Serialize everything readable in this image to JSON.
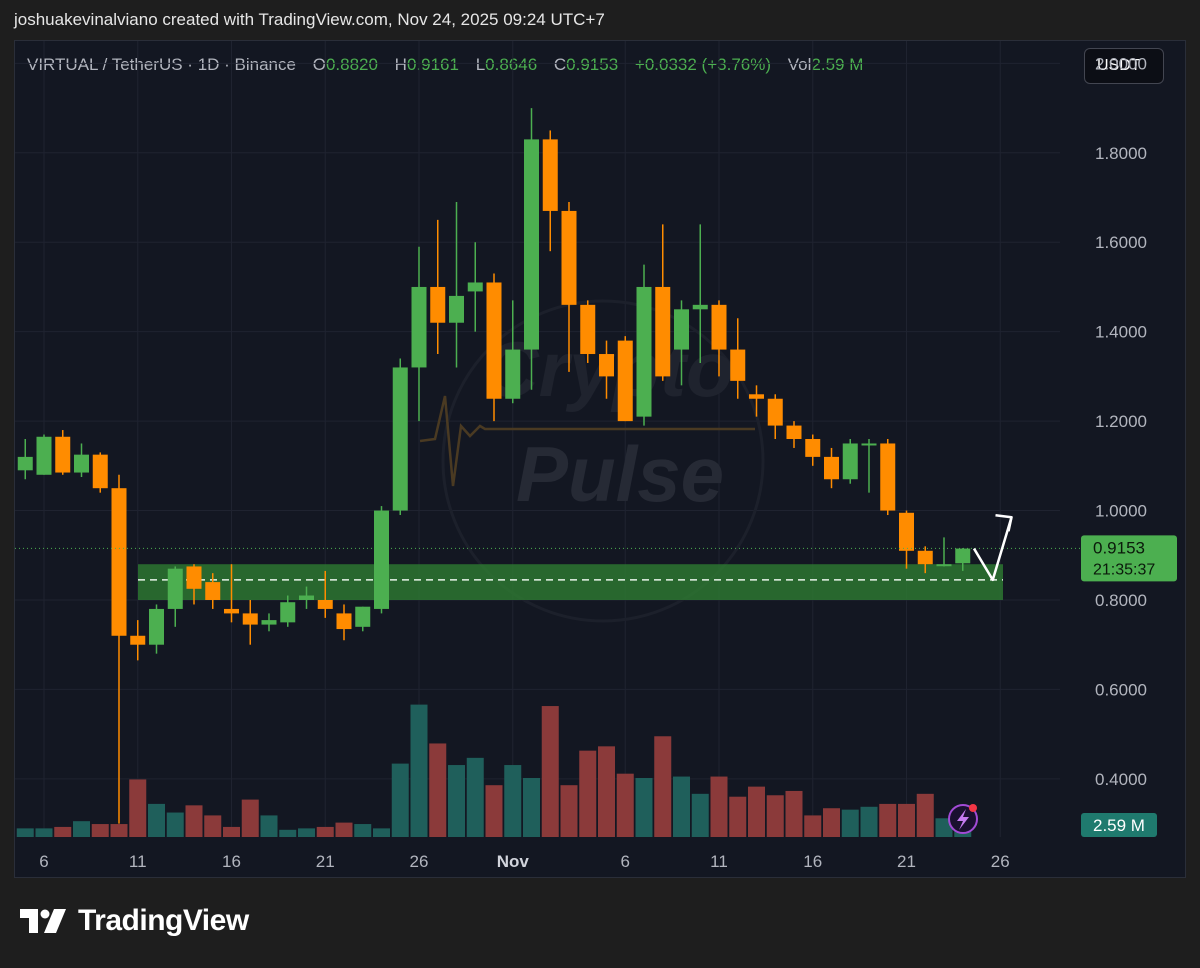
{
  "caption": "joshuakevinalviano created with TradingView.com, Nov 24, 2025 09:24 UTC+7",
  "legend": {
    "symbol": "VIRTUAL / TetherUS · 1D · Binance",
    "o_label": "O",
    "o": "0.8820",
    "h_label": "H",
    "h": "0.9161",
    "l_label": "L",
    "l": "0.8646",
    "c_label": "C",
    "c": "0.9153",
    "change": "+0.0332 (+3.76%)",
    "vol_label": "Vol",
    "vol": "2.59 M"
  },
  "currency_button": "USDT",
  "brand": "TradingView",
  "watermark": [
    "Crypto",
    "Pulse"
  ],
  "colors": {
    "up": "#4caf50",
    "down": "#ff8c00",
    "vol_up": "#1f5f5b",
    "vol_down": "#8b3a3a",
    "zone": "#2e7d32",
    "background": "#131722"
  },
  "chart_data": {
    "type": "candlestick",
    "y_axis": {
      "min": 0.27,
      "max": 2.05,
      "ticks": [
        "2.0000",
        "1.8000",
        "1.6000",
        "1.4000",
        "1.2000",
        "1.0000",
        "0.8000",
        "0.6000",
        "0.4000"
      ]
    },
    "x_ticks": [
      "6",
      "11",
      "16",
      "21",
      "26",
      "Nov",
      "6",
      "11",
      "16",
      "21",
      "26"
    ],
    "x_tick_days": [
      0,
      5,
      10,
      15,
      20,
      25,
      31,
      36,
      41,
      46,
      51
    ],
    "last_price": "0.9153",
    "countdown": "21:35:37",
    "last_volume": "2.59 M",
    "support_zone": [
      0.8,
      0.88
    ],
    "support_line": 0.845,
    "projection_path": [
      [
        49.6,
        0.915
      ],
      [
        50.6,
        0.845
      ],
      [
        51.6,
        0.985
      ]
    ],
    "candles": [
      {
        "d": -1,
        "o": 1.09,
        "h": 1.16,
        "l": 1.07,
        "c": 1.12
      },
      {
        "d": 0,
        "o": 1.08,
        "h": 1.17,
        "l": 1.08,
        "c": 1.165
      },
      {
        "d": 1,
        "o": 1.165,
        "h": 1.18,
        "l": 1.08,
        "c": 1.085
      },
      {
        "d": 2,
        "o": 1.085,
        "h": 1.15,
        "l": 1.075,
        "c": 1.125
      },
      {
        "d": 3,
        "o": 1.125,
        "h": 1.13,
        "l": 1.04,
        "c": 1.05
      },
      {
        "d": 4,
        "o": 1.05,
        "h": 1.08,
        "l": 0.3,
        "c": 0.72
      },
      {
        "d": 5,
        "o": 0.72,
        "h": 0.755,
        "l": 0.665,
        "c": 0.7
      },
      {
        "d": 6,
        "o": 0.7,
        "h": 0.79,
        "l": 0.68,
        "c": 0.78
      },
      {
        "d": 7,
        "o": 0.78,
        "h": 0.875,
        "l": 0.74,
        "c": 0.87
      },
      {
        "d": 8,
        "o": 0.875,
        "h": 0.88,
        "l": 0.79,
        "c": 0.825
      },
      {
        "d": 9,
        "o": 0.84,
        "h": 0.86,
        "l": 0.78,
        "c": 0.8
      },
      {
        "d": 10,
        "o": 0.78,
        "h": 0.88,
        "l": 0.75,
        "c": 0.77
      },
      {
        "d": 11,
        "o": 0.77,
        "h": 0.8,
        "l": 0.7,
        "c": 0.745
      },
      {
        "d": 12,
        "o": 0.745,
        "h": 0.77,
        "l": 0.73,
        "c": 0.755
      },
      {
        "d": 13,
        "o": 0.75,
        "h": 0.81,
        "l": 0.74,
        "c": 0.795
      },
      {
        "d": 14,
        "o": 0.8,
        "h": 0.83,
        "l": 0.78,
        "c": 0.81
      },
      {
        "d": 15,
        "o": 0.8,
        "h": 0.865,
        "l": 0.76,
        "c": 0.78
      },
      {
        "d": 16,
        "o": 0.77,
        "h": 0.79,
        "l": 0.71,
        "c": 0.735
      },
      {
        "d": 17,
        "o": 0.74,
        "h": 0.785,
        "l": 0.73,
        "c": 0.785
      },
      {
        "d": 18,
        "o": 0.78,
        "h": 1.01,
        "l": 0.77,
        "c": 1.0
      },
      {
        "d": 19,
        "o": 1.0,
        "h": 1.34,
        "l": 0.99,
        "c": 1.32
      },
      {
        "d": 20,
        "o": 1.32,
        "h": 1.59,
        "l": 1.2,
        "c": 1.5
      },
      {
        "d": 21,
        "o": 1.5,
        "h": 1.65,
        "l": 1.35,
        "c": 1.42
      },
      {
        "d": 22,
        "o": 1.42,
        "h": 1.69,
        "l": 1.32,
        "c": 1.48
      },
      {
        "d": 23,
        "o": 1.49,
        "h": 1.6,
        "l": 1.4,
        "c": 1.51
      },
      {
        "d": 24,
        "o": 1.51,
        "h": 1.53,
        "l": 1.2,
        "c": 1.25
      },
      {
        "d": 25,
        "o": 1.25,
        "h": 1.47,
        "l": 1.24,
        "c": 1.36
      },
      {
        "d": 26,
        "o": 1.36,
        "h": 1.9,
        "l": 1.27,
        "c": 1.83
      },
      {
        "d": 27,
        "o": 1.83,
        "h": 1.85,
        "l": 1.58,
        "c": 1.67
      },
      {
        "d": 28,
        "o": 1.67,
        "h": 1.69,
        "l": 1.31,
        "c": 1.46
      },
      {
        "d": 29,
        "o": 1.46,
        "h": 1.47,
        "l": 1.33,
        "c": 1.35
      },
      {
        "d": 30,
        "o": 1.35,
        "h": 1.38,
        "l": 1.25,
        "c": 1.3
      },
      {
        "d": 31,
        "o": 1.38,
        "h": 1.39,
        "l": 1.2,
        "c": 1.2
      },
      {
        "d": 32,
        "o": 1.21,
        "h": 1.55,
        "l": 1.19,
        "c": 1.5
      },
      {
        "d": 33,
        "o": 1.5,
        "h": 1.64,
        "l": 1.29,
        "c": 1.3
      },
      {
        "d": 34,
        "o": 1.36,
        "h": 1.47,
        "l": 1.28,
        "c": 1.45
      },
      {
        "d": 35,
        "o": 1.45,
        "h": 1.64,
        "l": 1.33,
        "c": 1.46
      },
      {
        "d": 36,
        "o": 1.46,
        "h": 1.47,
        "l": 1.3,
        "c": 1.36
      },
      {
        "d": 37,
        "o": 1.36,
        "h": 1.43,
        "l": 1.25,
        "c": 1.29
      },
      {
        "d": 38,
        "o": 1.26,
        "h": 1.28,
        "l": 1.21,
        "c": 1.25
      },
      {
        "d": 39,
        "o": 1.25,
        "h": 1.26,
        "l": 1.16,
        "c": 1.19
      },
      {
        "d": 40,
        "o": 1.19,
        "h": 1.2,
        "l": 1.14,
        "c": 1.16
      },
      {
        "d": 41,
        "o": 1.16,
        "h": 1.17,
        "l": 1.1,
        "c": 1.12
      },
      {
        "d": 42,
        "o": 1.12,
        "h": 1.14,
        "l": 1.05,
        "c": 1.07
      },
      {
        "d": 43,
        "o": 1.07,
        "h": 1.16,
        "l": 1.06,
        "c": 1.15
      },
      {
        "d": 44,
        "o": 1.15,
        "h": 1.16,
        "l": 1.04,
        "c": 1.15
      },
      {
        "d": 45,
        "o": 1.15,
        "h": 1.16,
        "l": 0.99,
        "c": 1.0
      },
      {
        "d": 46,
        "o": 0.995,
        "h": 1.0,
        "l": 0.87,
        "c": 0.91
      },
      {
        "d": 47,
        "o": 0.91,
        "h": 0.92,
        "l": 0.86,
        "c": 0.88
      },
      {
        "d": 48,
        "o": 0.88,
        "h": 0.94,
        "l": 0.875,
        "c": 0.88
      },
      {
        "d": 49,
        "o": 0.882,
        "h": 0.916,
        "l": 0.865,
        "c": 0.915
      }
    ],
    "volume": {
      "scale_max": 0.82,
      "values": [
        0.03,
        0.035,
        0.055,
        0.045,
        0.045,
        0.2,
        0.115,
        0.085,
        0.11,
        0.075,
        0.035,
        0.13,
        0.075,
        0.025,
        0.03,
        0.035,
        0.05,
        0.045,
        0.03,
        0.255,
        0.46,
        0.325,
        0.25,
        0.275,
        0.18,
        0.25,
        0.205,
        0.455,
        0.18,
        0.3,
        0.315,
        0.22,
        0.205,
        0.35,
        0.21,
        0.15,
        0.21,
        0.14,
        0.175,
        0.145,
        0.16,
        0.075,
        0.1,
        0.095,
        0.105,
        0.115,
        0.115,
        0.15,
        0.065,
        0.07
      ]
    }
  }
}
